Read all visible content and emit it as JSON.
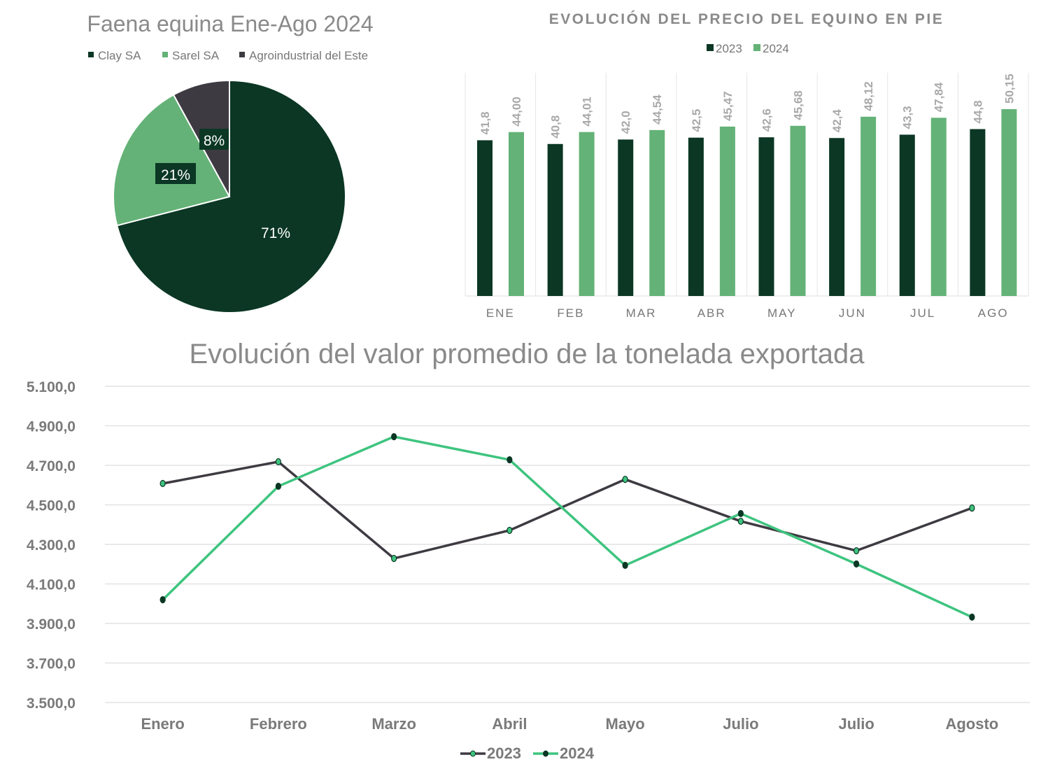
{
  "chart_data": [
    {
      "type": "pie",
      "title": "Faena equina Ene-Ago 2024",
      "labels": [
        "Clay SA",
        "Sarel SA",
        "Agroindustrial del Este"
      ],
      "values": [
        71,
        21,
        8
      ],
      "data_labels": [
        "71%",
        "21%",
        "8%"
      ],
      "colors": [
        "#0b3724",
        "#64b277",
        "#3e3a42"
      ],
      "legend": "top"
    },
    {
      "type": "bar",
      "title": "EVOLUCIÓN DEL PRECIO DEL EQUINO EN PIE",
      "categories": [
        "ENE",
        "FEB",
        "MAR",
        "ABR",
        "MAY",
        "JUN",
        "JUL",
        "AGO"
      ],
      "series": [
        {
          "name": "2023",
          "color": "#0b3724",
          "values": [
            41.8,
            40.8,
            42.0,
            42.5,
            42.6,
            42.4,
            43.3,
            44.8
          ],
          "labels": [
            "41,8",
            "40,8",
            "42,0",
            "42,5",
            "42,6",
            "42,4",
            "43,3",
            "44,8"
          ]
        },
        {
          "name": "2024",
          "color": "#64b277",
          "values": [
            44.0,
            44.01,
            44.54,
            45.47,
            45.68,
            48.12,
            47.84,
            50.15
          ],
          "labels": [
            "44,00",
            "44,01",
            "44,54",
            "45,47",
            "45,68",
            "48,12",
            "47,84",
            "50,15"
          ]
        }
      ],
      "ylim": [
        0,
        52
      ],
      "legend": "top"
    },
    {
      "type": "line",
      "title": "Evolución del valor promedio de la tonelada exportada",
      "categories": [
        "Enero",
        "Febrero",
        "Marzo",
        "Abril",
        "Mayo",
        "Julio",
        "Julio",
        "Agosto"
      ],
      "series": [
        {
          "name": "2023",
          "color": "#3e3a42",
          "values": [
            4608,
            4718,
            4229,
            4371,
            4629,
            4417,
            4268,
            4484
          ]
        },
        {
          "name": "2024",
          "color": "#3ec47f",
          "values": [
            4020,
            4594,
            4845,
            4728,
            4194,
            4456,
            4201,
            3932
          ]
        }
      ],
      "yticks": [
        "5.100,0",
        "4.900,0",
        "4.700,0",
        "4.500,0",
        "4.300,0",
        "4.100,0",
        "3.900,0",
        "3.700,0",
        "3.500,0"
      ],
      "ylim": [
        3500,
        5100
      ],
      "grid": true,
      "legend": "bottom"
    }
  ]
}
